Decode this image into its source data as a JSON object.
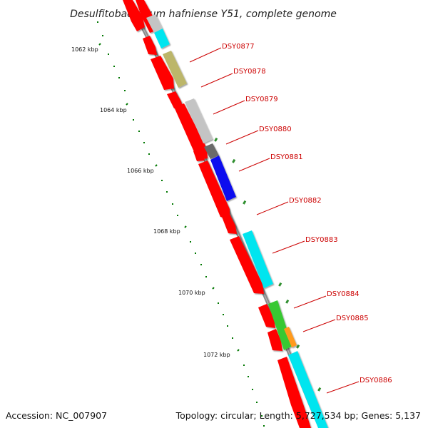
{
  "title": "Desulfitobacterium hafniense Y51, complete genome",
  "footer": {
    "accession": "Accession: NC_007907",
    "topology": "Topology: circular; Length: 5,727,534 bp; Genes: 5,137"
  },
  "kbp_labels": [
    "1062 kbp",
    "1064 kbp",
    "1066 kbp",
    "1068 kbp",
    "1070 kbp",
    "1072 kbp"
  ],
  "gene_labels": [
    "DSY0877",
    "DSY0878",
    "DSY0879",
    "DSY0880",
    "DSY0881",
    "DSY0882",
    "DSY0883",
    "DSY0884",
    "DSY0885",
    "DSY0886"
  ],
  "colors": {
    "red": "#ff0000",
    "cyan": "#00e5ef",
    "khaki": "#bcb66b",
    "light_gray": "#c4c4c4",
    "dark_gray": "#6a6a6a",
    "blue": "#1010ee",
    "green": "#39c832",
    "orange": "#ff9a1e",
    "backbone": "#888888",
    "tick_green": "#007700",
    "label_red": "#cc0000"
  }
}
